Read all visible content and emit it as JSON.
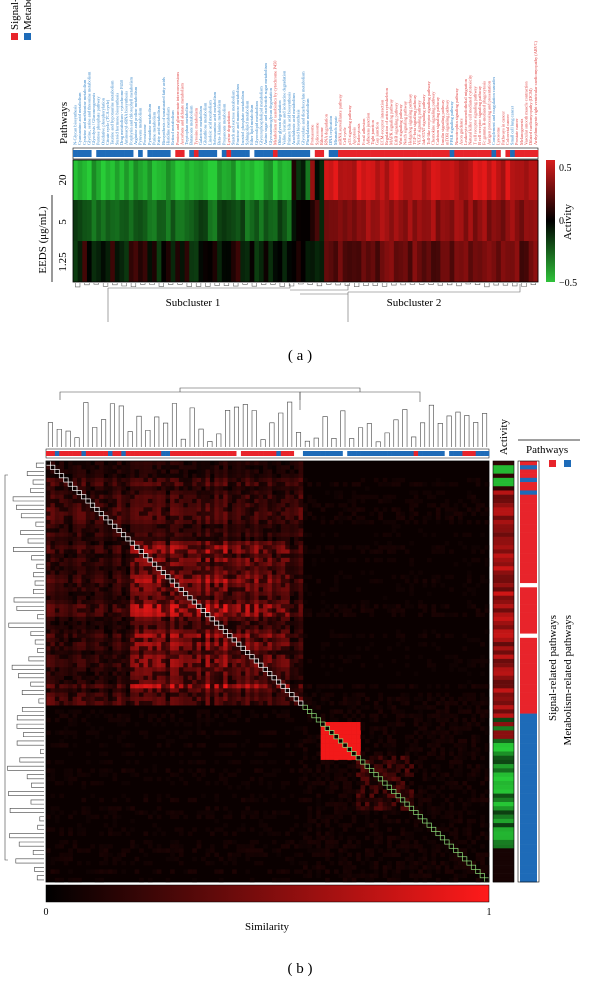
{
  "panel_a": {
    "label": "( a )",
    "legend": {
      "signal_label": "Signal-related pathways",
      "metabolism_label": "Metabolism-related pathways"
    },
    "pathways_label": "Pathways",
    "colorbar": {
      "title": "Activity",
      "max_tick": "0.5",
      "mid_tick": "0",
      "min_tick": "−0.5"
    },
    "dose_axis_label": "EEDS (μg/mL)",
    "subcluster1_label": "Subcluster 1",
    "subcluster2_label": "Subcluster 2",
    "pathway_names": [
      "N-Glycan biosynthesis",
      "Cyanoamino acid metabolism",
      "Cysteine and methionine metabolism",
      "Glycine, serine and threonine metabolism",
      "Glycolysis / Gluconeogenesis",
      "Pentose phosphate pathway",
      "Oxidative phosphorylation",
      "Citrate cycle (TCA cycle)",
      "Taurine and hypotaurine metabolism",
      "Steroid hormone biosynthesis",
      "Drug metabolism - cytochrome P450",
      "Aminoacyl-tRNA biosynthesis",
      "Porphyrin and chlorophyll metabolism",
      "Arginine and proline metabolism",
      "Pyruvate metabolism",
      "Peroxisome",
      "Pyrimidine metabolism",
      "Purine metabolism",
      "Fatty acid metabolism",
      "Biosynthesis of unsaturated fatty acids",
      "Histidine metabolism",
      "Retinol metabolism",
      "Pentose and glucuronate interconversions",
      "Ascorbate and aldarate metabolism",
      "Tryptophan metabolism",
      "Butanoate metabolism",
      "Tyrosine metabolism",
      "Galactose metabolism",
      "Glutathione metabolism",
      "Linoleic acid metabolism",
      "Selenoamino acid metabolism",
      "Beta-Alanine metabolism",
      "Propanoate metabolism",
      "Lysine degradation",
      "Starch and sucrose metabolism",
      "Fructose and mannose metabolism",
      "Inositol phosphate metabolism",
      "Sphingolipid metabolism",
      "Ether lipid metabolism",
      "Glycerolipid metabolism",
      "Glycerophospholipid metabolism",
      "Amino sugar and nucleotide sugar metabolism",
      "Glycosaminoglycan degradation",
      "Metabolism of xenobiotics by cytochrome P450",
      "Other glycan degradation",
      "Valine, leucine and isoleucine degradation",
      "Primary bile acid biosynthesis",
      "Arachidonic acid metabolism",
      "Steroid biosynthesis",
      "Glyoxylate and dicarboxylate metabolism",
      "Phenylalanine metabolism",
      "Proteasome",
      "Spliceosome",
      "Ribosome",
      "RNA degradation",
      "DNA replication",
      "Mismatch repair",
      "mRNA surveillance pathway",
      "Cell cycle",
      "p53 signaling pathway",
      "Apoptosis",
      "Endocytosis",
      "Focal adhesion",
      "Adherens junction",
      "Tight junction",
      "Gap junction",
      "ECM-receptor interaction",
      "Regulation of actin cytoskeleton",
      "MAPK signaling pathway",
      "ErbB signaling pathway",
      "Wnt signaling pathway",
      "Notch signaling pathway",
      "Hedgehog signaling pathway",
      "TGF-beta signaling pathway",
      "VEGF signaling pathway",
      "Jak-STAT signaling pathway",
      "Toll-like receptor signaling pathway",
      "Chemokine signaling pathway",
      "Calcium signaling pathway",
      "Insulin signaling pathway",
      "mTOR signaling pathway",
      "PPAR signaling pathway",
      "Neurotrophin signaling pathway",
      "Axon guidance",
      "Leukocyte transendothelial migration",
      "Natural killer cell mediated cytotoxicity",
      "T cell receptor signaling pathway",
      "B cell receptor signaling pathway",
      "Fc gamma R-mediated phagocytosis",
      "Antigen processing and presentation",
      "Complement and coagulation cascades",
      "Lysosome",
      "Pathways in cancer",
      "Colorectal cancer",
      "Small cell lung cancer",
      "Prostate cancer",
      "Melanogenesis",
      "Vascular smooth muscle contraction",
      "Dilated cardiomyopathy (DCM)",
      "Arrhythmogenic right ventricular cardiomyopathy (ARVC)"
    ]
  },
  "panel_b": {
    "label": "( b )",
    "activity_label": "Activity",
    "pathways_label": "Pathways",
    "legend": {
      "signal_label": "Signal-related pathways",
      "metabolism_label": "Metabolism-related pathways"
    },
    "similarity_label": "Similarity",
    "similarity_min": "0",
    "similarity_max": "1"
  },
  "colors": {
    "signal": "#e8242b",
    "metabolism": "#1e6bb8",
    "heat_red": "#ff1a1a",
    "heat_green": "#22cc33",
    "heat_black": "#000000",
    "signal_text": "#e03a3a",
    "metabolism_text": "#2f82c8"
  },
  "chart_data": [
    {
      "type": "heatmap",
      "panel": "a",
      "rows": [
        "20",
        "5",
        "1.25"
      ],
      "ylabel": "EEDS (μg/mL)",
      "value_range": [
        -0.5,
        0.5
      ],
      "colorbar_label": "Activity",
      "n_columns": 100,
      "subclusters": [
        {
          "name": "Subcluster 1",
          "columns": [
            0,
            50
          ],
          "dominant_activity": "negative"
        },
        {
          "name": "Subcluster 2",
          "columns": [
            51,
            99
          ],
          "dominant_activity": "positive"
        }
      ],
      "row_mean_activity": {
        "20": [
          -0.4,
          0.45
        ],
        "5": [
          -0.2,
          0.3
        ],
        "1.25": [
          -0.05,
          0.2
        ]
      }
    },
    {
      "type": "heatmap",
      "panel": "b",
      "matrix": "pathway-pathway similarity",
      "value_range": [
        0,
        1
      ],
      "colorbar_label": "Similarity",
      "n_pathways": 100,
      "blocks": [
        {
          "name": "signal-related cluster",
          "range": [
            0.0,
            0.58
          ],
          "similarity": 0.7
        },
        {
          "name": "metabolism-related cluster",
          "range": [
            0.58,
            1.0
          ],
          "similarity": 0.4
        }
      ]
    }
  ]
}
